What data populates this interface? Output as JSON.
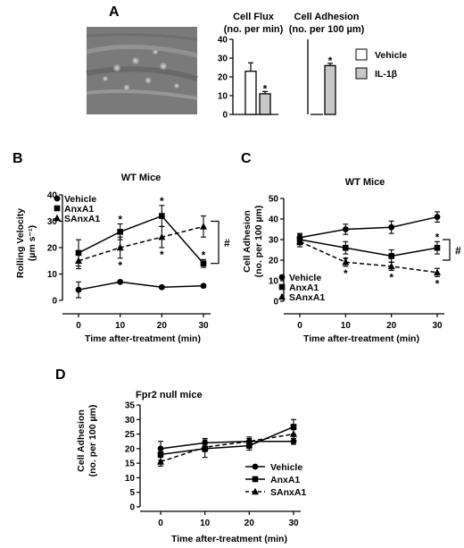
{
  "figure": {
    "panel_letters": [
      "A",
      "B",
      "C",
      "D"
    ],
    "colors": {
      "ink": "#000000",
      "vehicle_bar": "#ffffff",
      "il1b_bar": "#c8c8c8",
      "micrograph": "#7a7a7a"
    }
  },
  "chart_data": [
    {
      "id": "A-flux",
      "type": "bar",
      "title": "Cell Flux",
      "subtitle": "(no. per min)",
      "categories": [
        "Vehicle",
        "IL-1β"
      ],
      "values": [
        23,
        11
      ],
      "errors": [
        4.5,
        1.2
      ],
      "significance": [
        "",
        "*"
      ],
      "ylim": [
        0,
        40
      ],
      "yticks": [
        0,
        10,
        20,
        30,
        40
      ],
      "ytick_labels": [
        "0",
        "10",
        "20",
        "30",
        "40"
      ]
    },
    {
      "id": "A-adhesion",
      "type": "bar",
      "title": "Cell Adhesion",
      "subtitle": "(no. per 100 µm)",
      "categories": [
        "Vehicle",
        "IL-1β"
      ],
      "values": [
        0,
        26
      ],
      "errors": [
        0,
        1.2
      ],
      "significance": [
        "",
        "*"
      ],
      "ylim": [
        0,
        40
      ],
      "legend": {
        "entries": [
          "Vehicle",
          "IL-1β"
        ],
        "position": "right"
      }
    },
    {
      "id": "B",
      "type": "line",
      "title": "WT Mice",
      "ylabel_lines": [
        "Rolling Velocity",
        "(µm s⁻¹)"
      ],
      "xlabel": "Time after-treatment (min)",
      "x": [
        0,
        10,
        20,
        30
      ],
      "xtick_labels": [
        "0",
        "10",
        "20",
        "30"
      ],
      "xlim": [
        0,
        30
      ],
      "ylim": [
        0,
        40
      ],
      "yticks": [
        0,
        10,
        20,
        30,
        40
      ],
      "ytick_labels": [
        "0",
        "10",
        "20",
        "30",
        "40"
      ],
      "series": [
        {
          "name": "Vehicle",
          "marker": "circle",
          "dash": "solid",
          "values": [
            4,
            7,
            5,
            5.5
          ],
          "errors": [
            3,
            0.5,
            0.5,
            0.5
          ],
          "stars": [
            "",
            "",
            "",
            ""
          ]
        },
        {
          "name": "AnxA1",
          "marker": "square",
          "dash": "solid",
          "values": [
            18,
            26,
            32,
            14
          ],
          "errors": [
            5,
            3,
            4,
            1.5
          ],
          "stars": [
            "",
            "above",
            "above",
            "above"
          ]
        },
        {
          "name": "SAnxA1",
          "marker": "triangle",
          "dash": "dashed",
          "values": [
            15,
            20,
            24,
            28
          ],
          "errors": [
            3,
            4,
            4,
            4
          ],
          "stars": [
            "",
            "below",
            "below",
            ""
          ]
        }
      ],
      "hash": "#",
      "legend": {
        "position": "top-left"
      }
    },
    {
      "id": "C",
      "type": "line",
      "title": "WT Mice",
      "ylabel_lines": [
        "Cell Adhesion",
        "(no. per 100 µm)"
      ],
      "xlabel": "Time after-treatment (min)",
      "x": [
        0,
        10,
        20,
        30
      ],
      "xtick_labels": [
        "0",
        "10",
        "20",
        "30"
      ],
      "xlim": [
        0,
        30
      ],
      "ylim": [
        0,
        50
      ],
      "yticks": [
        0,
        10,
        20,
        30,
        40,
        50
      ],
      "ytick_labels": [
        "0",
        "10",
        "20",
        "30",
        "40",
        "50"
      ],
      "series": [
        {
          "name": "Vehicle",
          "marker": "circle",
          "dash": "solid",
          "values": [
            31,
            35,
            36,
            41
          ],
          "errors": [
            2,
            2.5,
            3,
            2.5
          ],
          "stars": [
            "",
            "",
            "",
            ""
          ]
        },
        {
          "name": "AnxA1",
          "marker": "square",
          "dash": "solid",
          "values": [
            30,
            26,
            22,
            26
          ],
          "errors": [
            2.5,
            3,
            3,
            3
          ],
          "stars": [
            "",
            "below",
            "below",
            "above"
          ]
        },
        {
          "name": "SAnxA1",
          "marker": "triangle",
          "dash": "dashed",
          "values": [
            29,
            19,
            17,
            14
          ],
          "errors": [
            2.5,
            2,
            2,
            2
          ],
          "stars": [
            "",
            "below",
            "below",
            "below"
          ]
        }
      ],
      "hash": "#",
      "legend": {
        "position": "bottom-left"
      }
    },
    {
      "id": "D",
      "type": "line",
      "title": "Fpr2 null mice",
      "ylabel_lines": [
        "Cell Adhesion",
        "(no. per 100 µm)"
      ],
      "xlabel": "Time after-treatment (min)",
      "x": [
        0,
        10,
        20,
        30
      ],
      "xtick_labels": [
        "0",
        "10",
        "20",
        "30"
      ],
      "xlim": [
        0,
        30
      ],
      "ylim": [
        0,
        35
      ],
      "yticks": [
        0,
        5,
        10,
        15,
        20,
        25,
        30,
        35
      ],
      "ytick_labels": [
        "0",
        "5",
        "10",
        "15",
        "20",
        "25",
        "30",
        "35"
      ],
      "series": [
        {
          "name": "Vehicle",
          "marker": "circle",
          "dash": "solid",
          "values": [
            20,
            22,
            22.5,
            22.5
          ],
          "errors": [
            2.5,
            1.5,
            1.5,
            1
          ],
          "stars": [
            "",
            "",
            "",
            ""
          ]
        },
        {
          "name": "AnxA1",
          "marker": "square",
          "dash": "solid",
          "values": [
            18,
            20,
            21,
            27.5
          ],
          "errors": [
            2,
            3,
            1.5,
            2.5
          ],
          "stars": [
            "",
            "",
            "",
            ""
          ]
        },
        {
          "name": "SAnxA1",
          "marker": "triangle",
          "dash": "dashed",
          "values": [
            15.5,
            20.5,
            22.5,
            25
          ],
          "errors": [
            1.5,
            1.5,
            1,
            1.5
          ],
          "stars": [
            "",
            "",
            "",
            ""
          ]
        }
      ],
      "legend": {
        "position": "bottom-right"
      }
    }
  ]
}
